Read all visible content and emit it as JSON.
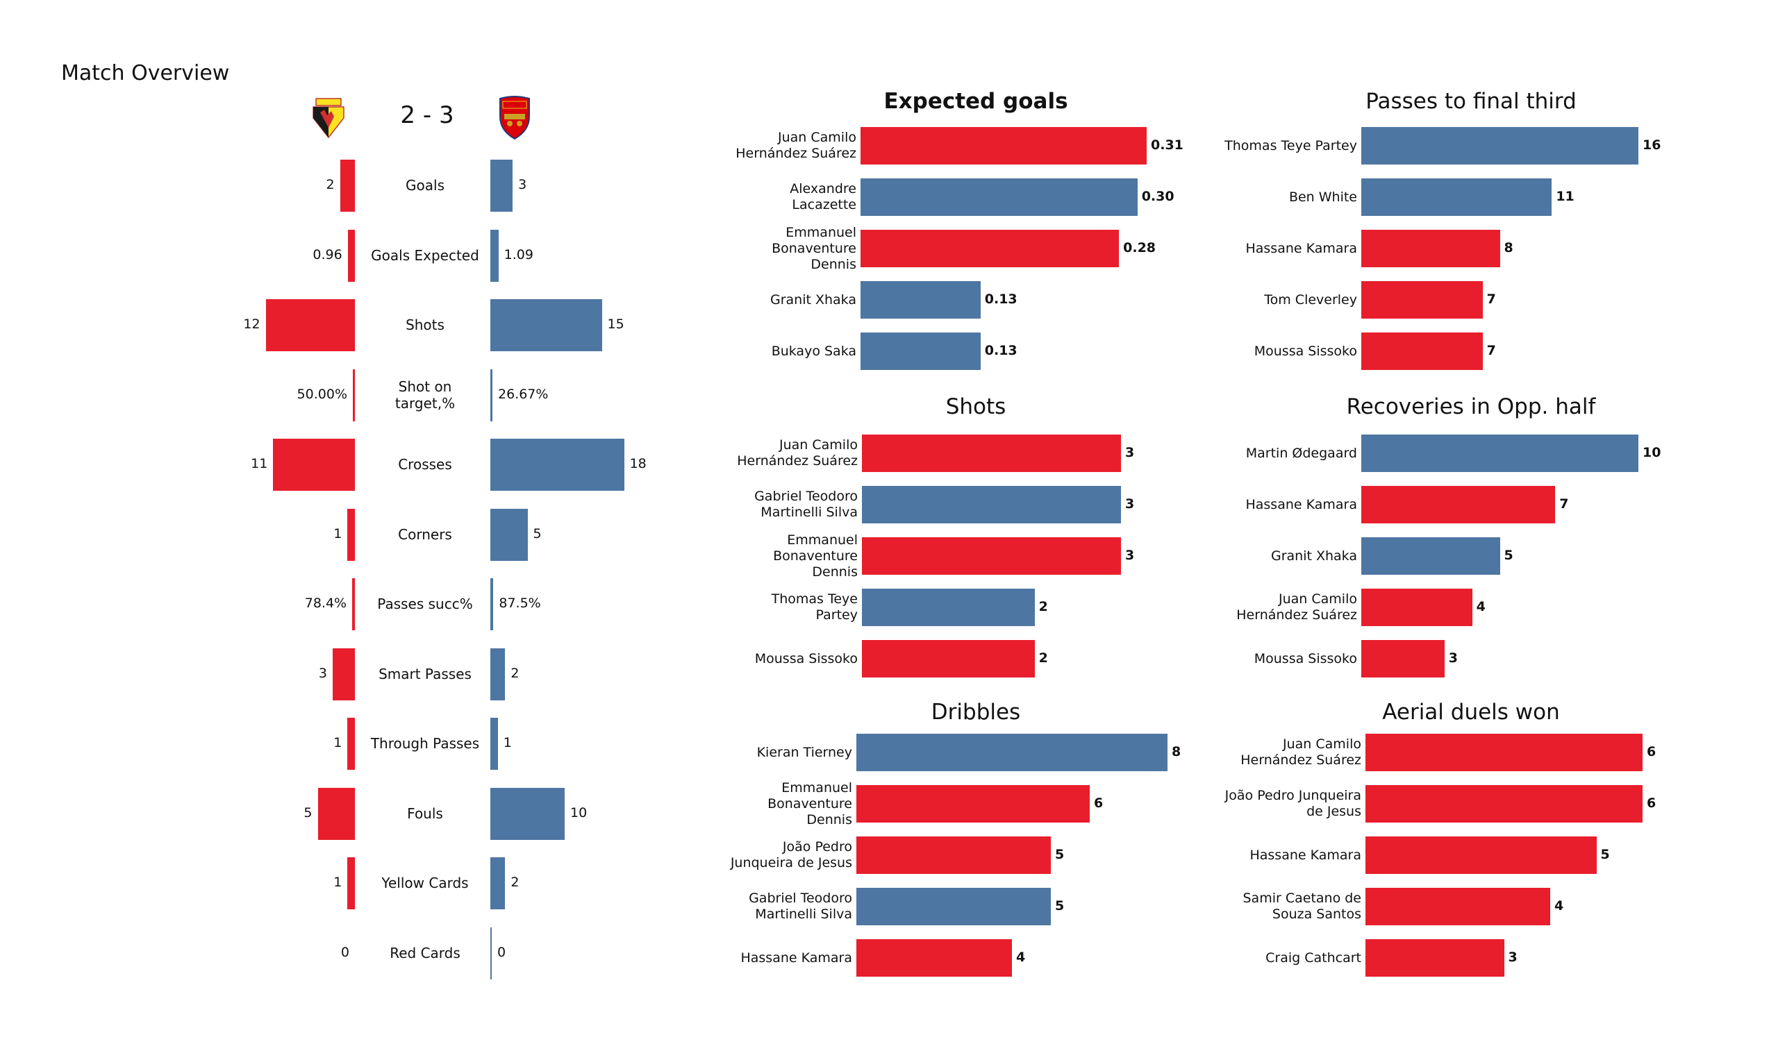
{
  "title": "Match Overview",
  "colors": {
    "home": "#E81E2C",
    "away": "#4E76A2"
  },
  "header": {
    "home_team": "Watford",
    "away_team": "Arsenal",
    "home_logo_icon": "watford-crest-icon",
    "away_logo_icon": "arsenal-crest-icon",
    "score": "2 - 3"
  },
  "chart_data": [
    {
      "type": "bar",
      "title": "Match Overview",
      "orientation": "diverging-horizontal",
      "categories": [
        "Goals",
        "Goals Expected",
        "Shots",
        "Shot on target,%",
        "Crosses",
        "Corners",
        "Passes succ%",
        "Smart Passes",
        "Through Passes",
        "Fouls",
        "Yellow Cards",
        "Red Cards"
      ],
      "series": [
        {
          "name": "Watford",
          "values": [
            2,
            0.96,
            12,
            0.5,
            11,
            1,
            0.784,
            3,
            1,
            5,
            1,
            0
          ],
          "labels": [
            "2",
            "0.96",
            "12",
            "50.00%",
            "11",
            "1",
            "78.4%",
            "3",
            "1",
            "5",
            "1",
            "0"
          ]
        },
        {
          "name": "Arsenal",
          "values": [
            3,
            1.09,
            15,
            0.2667,
            18,
            5,
            0.875,
            2,
            1,
            10,
            2,
            0
          ],
          "labels": [
            "3",
            "1.09",
            "15",
            "26.67%",
            "18",
            "5",
            "87.5%",
            "2",
            "1",
            "10",
            "2",
            "0"
          ]
        }
      ]
    },
    {
      "type": "bar",
      "title": "Expected goals",
      "title_bold": true,
      "categories": [
        "Juan Camilo\nHernández Suárez",
        "Alexandre\nLacazette",
        "Emmanuel\nBonaventure\nDennis",
        "Granit Xhaka",
        "Bukayo Saka"
      ],
      "values": [
        0.31,
        0.3,
        0.28,
        0.13,
        0.13
      ],
      "labels": [
        "0.31",
        "0.30",
        "0.28",
        "0.13",
        "0.13"
      ],
      "teams": [
        "home",
        "away",
        "home",
        "away",
        "away"
      ]
    },
    {
      "type": "bar",
      "title": "Passes to final third",
      "categories": [
        "Thomas Teye Partey",
        "Ben White",
        "Hassane Kamara",
        "Tom Cleverley",
        "Moussa Sissoko"
      ],
      "values": [
        16,
        11,
        8,
        7,
        7
      ],
      "labels": [
        "16",
        "11",
        "8",
        "7",
        "7"
      ],
      "teams": [
        "away",
        "away",
        "home",
        "home",
        "home"
      ]
    },
    {
      "type": "bar",
      "title": "Shots",
      "categories": [
        "Juan Camilo\nHernández Suárez",
        "Gabriel Teodoro\nMartinelli Silva",
        "Emmanuel\nBonaventure\nDennis",
        "Thomas Teye\nPartey",
        "Moussa Sissoko"
      ],
      "values": [
        3,
        3,
        3,
        2,
        2
      ],
      "labels": [
        "3",
        "3",
        "3",
        "2",
        "2"
      ],
      "teams": [
        "home",
        "away",
        "home",
        "away",
        "home"
      ]
    },
    {
      "type": "bar",
      "title": "Recoveries in Opp. half",
      "categories": [
        "Martin Ødegaard",
        "Hassane Kamara",
        "Granit Xhaka",
        "Juan Camilo\nHernández Suárez",
        "Moussa Sissoko"
      ],
      "values": [
        10,
        7,
        5,
        4,
        3
      ],
      "labels": [
        "10",
        "7",
        "5",
        "4",
        "3"
      ],
      "teams": [
        "away",
        "home",
        "away",
        "home",
        "home"
      ]
    },
    {
      "type": "bar",
      "title": "Dribbles",
      "categories": [
        "Kieran Tierney",
        "Emmanuel\nBonaventure\nDennis",
        "João Pedro\nJunqueira de Jesus",
        "Gabriel Teodoro\nMartinelli Silva",
        "Hassane Kamara"
      ],
      "values": [
        8,
        6,
        5,
        5,
        4
      ],
      "labels": [
        "8",
        "6",
        "5",
        "5",
        "4"
      ],
      "teams": [
        "away",
        "home",
        "home",
        "away",
        "home"
      ]
    },
    {
      "type": "bar",
      "title": "Aerial duels won",
      "categories": [
        "Juan Camilo\nHernández Suárez",
        "João Pedro Junqueira\nde Jesus",
        "Hassane Kamara",
        "Samir Caetano de\nSouza Santos",
        "Craig Cathcart"
      ],
      "values": [
        6,
        6,
        5,
        4,
        3
      ],
      "labels": [
        "6",
        "6",
        "5",
        "4",
        "3"
      ],
      "teams": [
        "home",
        "home",
        "home",
        "home",
        "home"
      ]
    }
  ]
}
